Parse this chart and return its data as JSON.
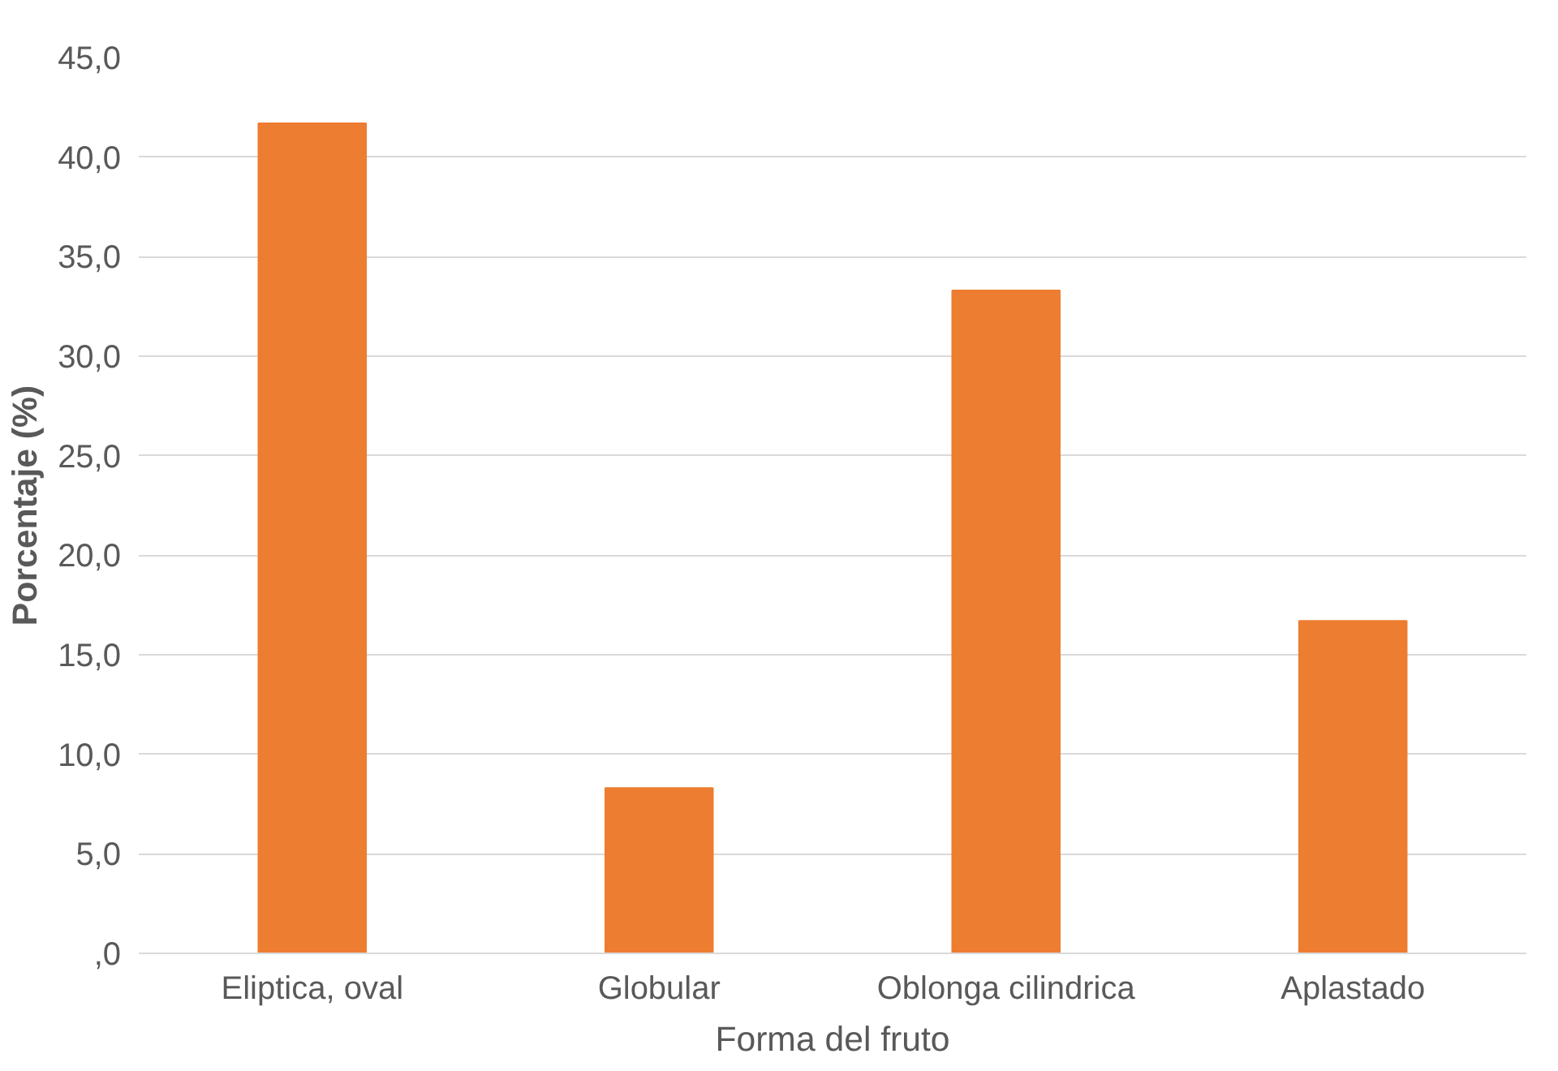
{
  "chart_data": {
    "type": "bar",
    "xlabel": "Forma del fruto",
    "ylabel": "Porcentaje (%)",
    "categories": [
      "Eliptica, oval",
      "Globular",
      "Oblonga cilindrica",
      "Aplastado"
    ],
    "values": [
      41.7,
      8.3,
      33.3,
      16.7
    ],
    "color": "#ed7d31",
    "ylim": [
      0,
      45
    ],
    "yticks": [
      {
        "value": 0,
        "label": ",0"
      },
      {
        "value": 5,
        "label": "5,0"
      },
      {
        "value": 10,
        "label": "10,0"
      },
      {
        "value": 15,
        "label": "15,0"
      },
      {
        "value": 20,
        "label": "20,0"
      },
      {
        "value": 25,
        "label": "25,0"
      },
      {
        "value": 30,
        "label": "30,0"
      },
      {
        "value": 35,
        "label": "35,0"
      },
      {
        "value": 40,
        "label": "40,0"
      },
      {
        "value": 45,
        "label": "45,0"
      }
    ],
    "grid": "y"
  }
}
